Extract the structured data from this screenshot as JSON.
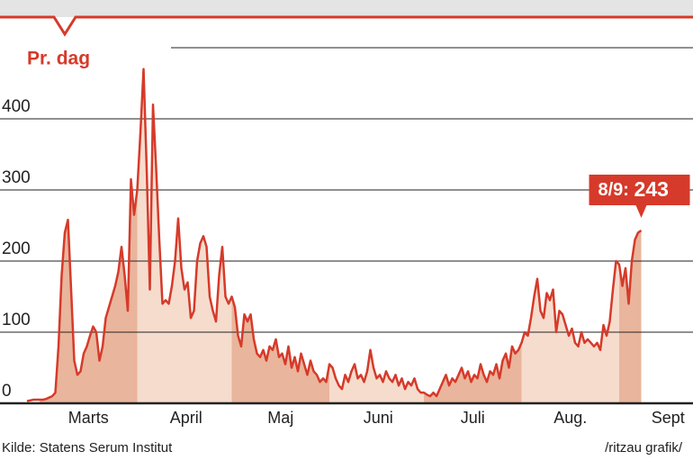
{
  "chart_data": {
    "type": "area",
    "ylabel": "Pr. dag",
    "annotation": "8/9:",
    "source": "Kilde: Statens Serum Institut",
    "credit": "/ritzau grafik/",
    "color": "#d63a2a",
    "fills": [
      "#e9b59c",
      "#f6dccd"
    ],
    "categories": [
      null,
      "Marts",
      "April",
      "Maj",
      "Juni",
      "Juli",
      "Aug.",
      "Sept"
    ],
    "values": [
      [
        3,
        4,
        5,
        5
      ],
      [
        5,
        5,
        6,
        8,
        10,
        15,
        80,
        180,
        240,
        258,
        160,
        60,
        40,
        45,
        70,
        80,
        95,
        108,
        100,
        60,
        80,
        120,
        135,
        150,
        165,
        185,
        220,
        180,
        130,
        315,
        265
      ],
      [
        300,
        380,
        470,
        330,
        160,
        420,
        330,
        230,
        140,
        145,
        140,
        165,
        200,
        260,
        190,
        160,
        170,
        120,
        130,
        200,
        225,
        235,
        220,
        150,
        130,
        115,
        180,
        220,
        150,
        140
      ],
      [
        150,
        135,
        95,
        80,
        125,
        115,
        125,
        90,
        70,
        65,
        75,
        60,
        80,
        75,
        90,
        65,
        70,
        55,
        80,
        50,
        65,
        45,
        70,
        55,
        40,
        60,
        45,
        40,
        30,
        35,
        30
      ],
      [
        55,
        50,
        35,
        25,
        20,
        40,
        30,
        45,
        55,
        35,
        40,
        30,
        45,
        75,
        50,
        35,
        40,
        30,
        45,
        35,
        30,
        40,
        25,
        35,
        20,
        30,
        25,
        35,
        20,
        15
      ],
      [
        15,
        12,
        10,
        15,
        10,
        20,
        30,
        40,
        25,
        35,
        30,
        40,
        50,
        35,
        45,
        30,
        40,
        35,
        55,
        40,
        30,
        45,
        40,
        55,
        35,
        60,
        70,
        50,
        80,
        70,
        75
      ],
      [
        85,
        100,
        95,
        120,
        150,
        175,
        130,
        120,
        155,
        145,
        160,
        100,
        130,
        125,
        110,
        95,
        105,
        85,
        80,
        100,
        85,
        90,
        85,
        80,
        85,
        75,
        110,
        95,
        115,
        160,
        200
      ],
      [
        195,
        165,
        190,
        140,
        200,
        230,
        240,
        243
      ]
    ],
    "ylim": [
      0,
      500
    ],
    "yticks": [
      0,
      100,
      200,
      300,
      400
    ],
    "grid": true
  }
}
